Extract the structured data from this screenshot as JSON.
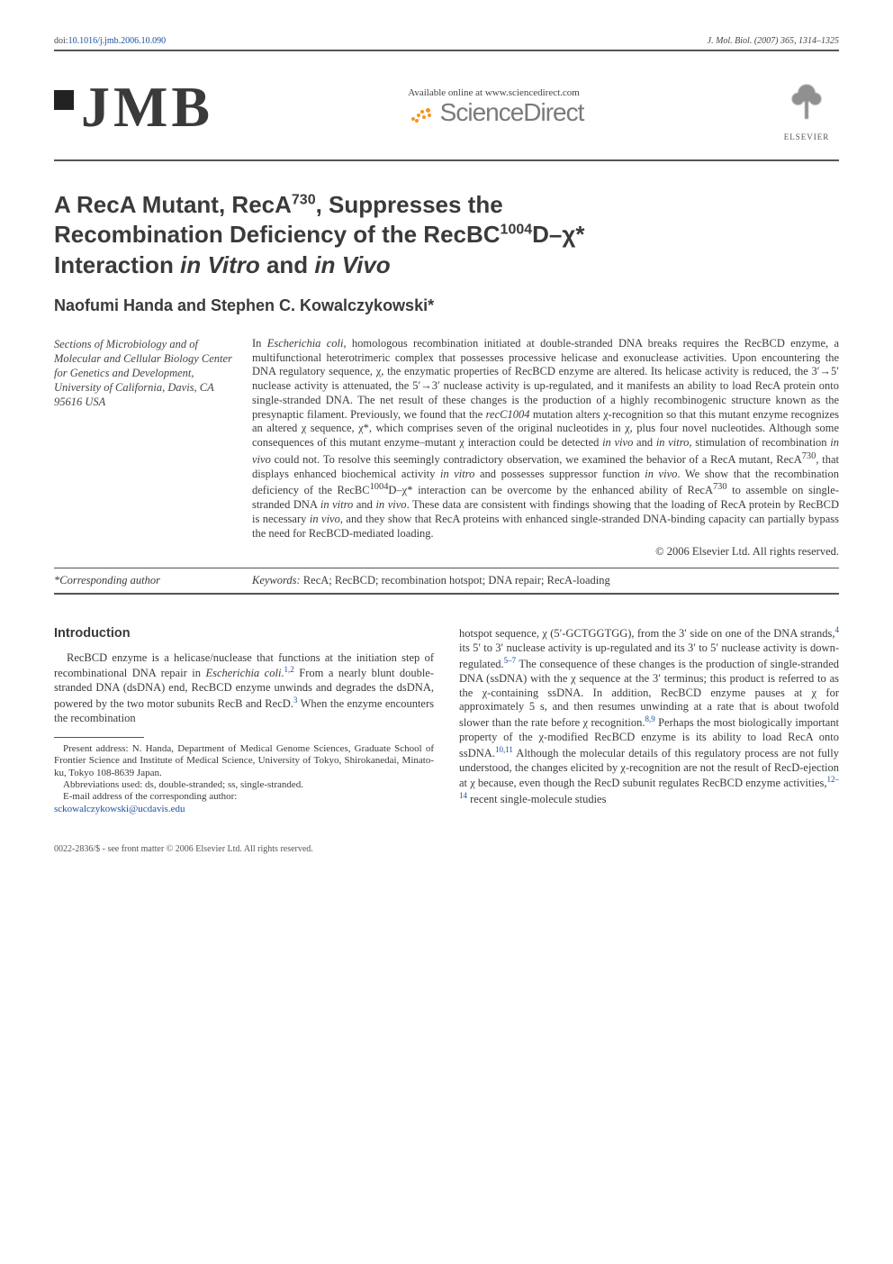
{
  "doi": {
    "prefix": "doi:",
    "value": "10.1016/j.jmb.2006.10.090"
  },
  "journal_ref": "J. Mol. Biol. (2007) 365, 1314–1325",
  "jmb": "JMB",
  "sciencedirect": {
    "available": "Available online at www.sciencedirect.com",
    "label": "ScienceDirect"
  },
  "elsevier": "ELSEVIER",
  "title_parts": {
    "l1a": "A RecA Mutant, RecA",
    "l1sup": "730",
    "l1b": ", Suppresses the",
    "l2a": "Recombination Deficiency of the RecBC",
    "l2sup": "1004",
    "l2b": "D–χ*",
    "l3a": "Interaction ",
    "l3i1": "in Vitro",
    "l3mid": " and ",
    "l3i2": "in Vivo"
  },
  "authors": "Naofumi Handa and Stephen C. Kowalczykowski*",
  "affiliation": "Sections of Microbiology and of Molecular and Cellular Biology Center for Genetics and Development, University of California, Davis, CA 95616 USA",
  "abstract": {
    "p1a": "In ",
    "p1i": "Escherichia coli",
    "p1b": ", homologous recombination initiated at double-stranded DNA breaks requires the RecBCD enzyme, a multifunctional heterotrimeric complex that possesses processive helicase and exonuclease activities. Upon encountering the DNA regulatory sequence, χ, the enzymatic properties of RecBCD enzyme are altered. Its helicase activity is reduced, the 3′→5′ nuclease activity is attenuated, the 5′→3′ nuclease activity is up-regulated, and it manifests an ability to load RecA protein onto single-stranded DNA. The net result of these changes is the production of a highly recombinogenic structure known as the presynaptic filament. Previously, we found that the ",
    "p1i2": "recC1004",
    "p1c": " mutation alters χ-recognition so that this mutant enzyme recognizes an altered χ sequence, χ*, which comprises seven of the original nucleotides in χ, plus four novel nucleotides. Although some consequences of this mutant enzyme–mutant χ interaction could be detected ",
    "p1i3": "in vivo",
    "p1d": " and ",
    "p1i4": "in vitro",
    "p1e": ", stimulation of recombination ",
    "p1i5": "in vivo",
    "p1f": " could not. To resolve this seemingly contradictory observation, we examined the behavior of a RecA mutant, RecA",
    "p1sup1": "730",
    "p1g": ", that displays enhanced biochemical activity ",
    "p1i6": "in vitro",
    "p1h": " and possesses suppressor function ",
    "p1i7": "in vivo",
    "p1j": ". We show that the recombination deficiency of the RecBC",
    "p1sup2": "1004",
    "p1k": "D–χ* interaction can be overcome by the enhanced ability of RecA",
    "p1sup3": "730",
    "p1l": " to assemble on single-stranded DNA ",
    "p1i8": "in vitro",
    "p1m": " and ",
    "p1i9": "in vivo",
    "p1n": ". These data are consistent with findings showing that the loading of RecA protein by RecBCD is necessary ",
    "p1i10": "in vivo",
    "p1o": ", and they show that RecA proteins with enhanced single-stranded DNA-binding capacity can partially bypass the need for RecBCD-mediated loading."
  },
  "copyright": "© 2006 Elsevier Ltd. All rights reserved.",
  "corresponding": "*Corresponding author",
  "keywords_label": "Keywords:",
  "keywords": " RecA; RecBCD; recombination hotspot; DNA repair; RecA-loading",
  "intro_heading": "Introduction",
  "intro": {
    "p1a": "RecBCD enzyme is a helicase/nuclease that functions at the initiation step of recombinational DNA repair in ",
    "p1i": "Escherichia coli",
    "p1b": ".",
    "ref1": "1,2",
    "p1c": " From a nearly blunt double-stranded DNA (dsDNA) end, RecBCD enzyme unwinds and degrades the dsDNA, powered by the two motor subunits RecB and RecD.",
    "ref2": "3",
    "p1d": " When the enzyme encounters the recombination",
    "p2a": "hotspot sequence, χ (5′-GCTGGTGG), from the 3′ side on one of the DNA strands,",
    "ref3": "4",
    "p2b": " its 5′ to 3′ nuclease activity is up-regulated and its 3′ to 5′ nuclease activity is down-regulated.",
    "ref4": "5–7",
    "p2c": " The consequence of these changes is the production of single-stranded DNA (ssDNA) with the χ sequence at the 3′ terminus; this product is referred to as the χ-containing ssDNA. In addition, RecBCD enzyme pauses at χ for approximately 5 s, and then resumes unwinding at a rate that is about twofold slower than the rate before χ recognition.",
    "ref5": "8,9",
    "p2d": " Perhaps the most biologically important property of the χ-modified RecBCD enzyme is its ability to load RecA onto ssDNA.",
    "ref6": "10,11",
    "p2e": " Although the molecular details of this regulatory process are not fully understood, the changes elicited by χ-recognition are not the result of RecD-ejection at χ because, even though the RecD subunit regulates RecBCD enzyme activities,",
    "ref7": "12–14",
    "p2f": " recent single-molecule studies"
  },
  "footnotes": {
    "f1": "Present address: N. Handa, Department of Medical Genome Sciences, Graduate School of Frontier Science and Institute of Medical Science, University of Tokyo, Shirokanedai, Minato-ku, Tokyo 108-8639 Japan.",
    "f2": "Abbreviations used: ds, double-stranded; ss, single-stranded.",
    "f3": "E-mail address of the corresponding author:",
    "email": "sckowalczykowski@ucdavis.edu"
  },
  "bottom": "0022-2836/$ - see front matter © 2006 Elsevier Ltd. All rights reserved."
}
